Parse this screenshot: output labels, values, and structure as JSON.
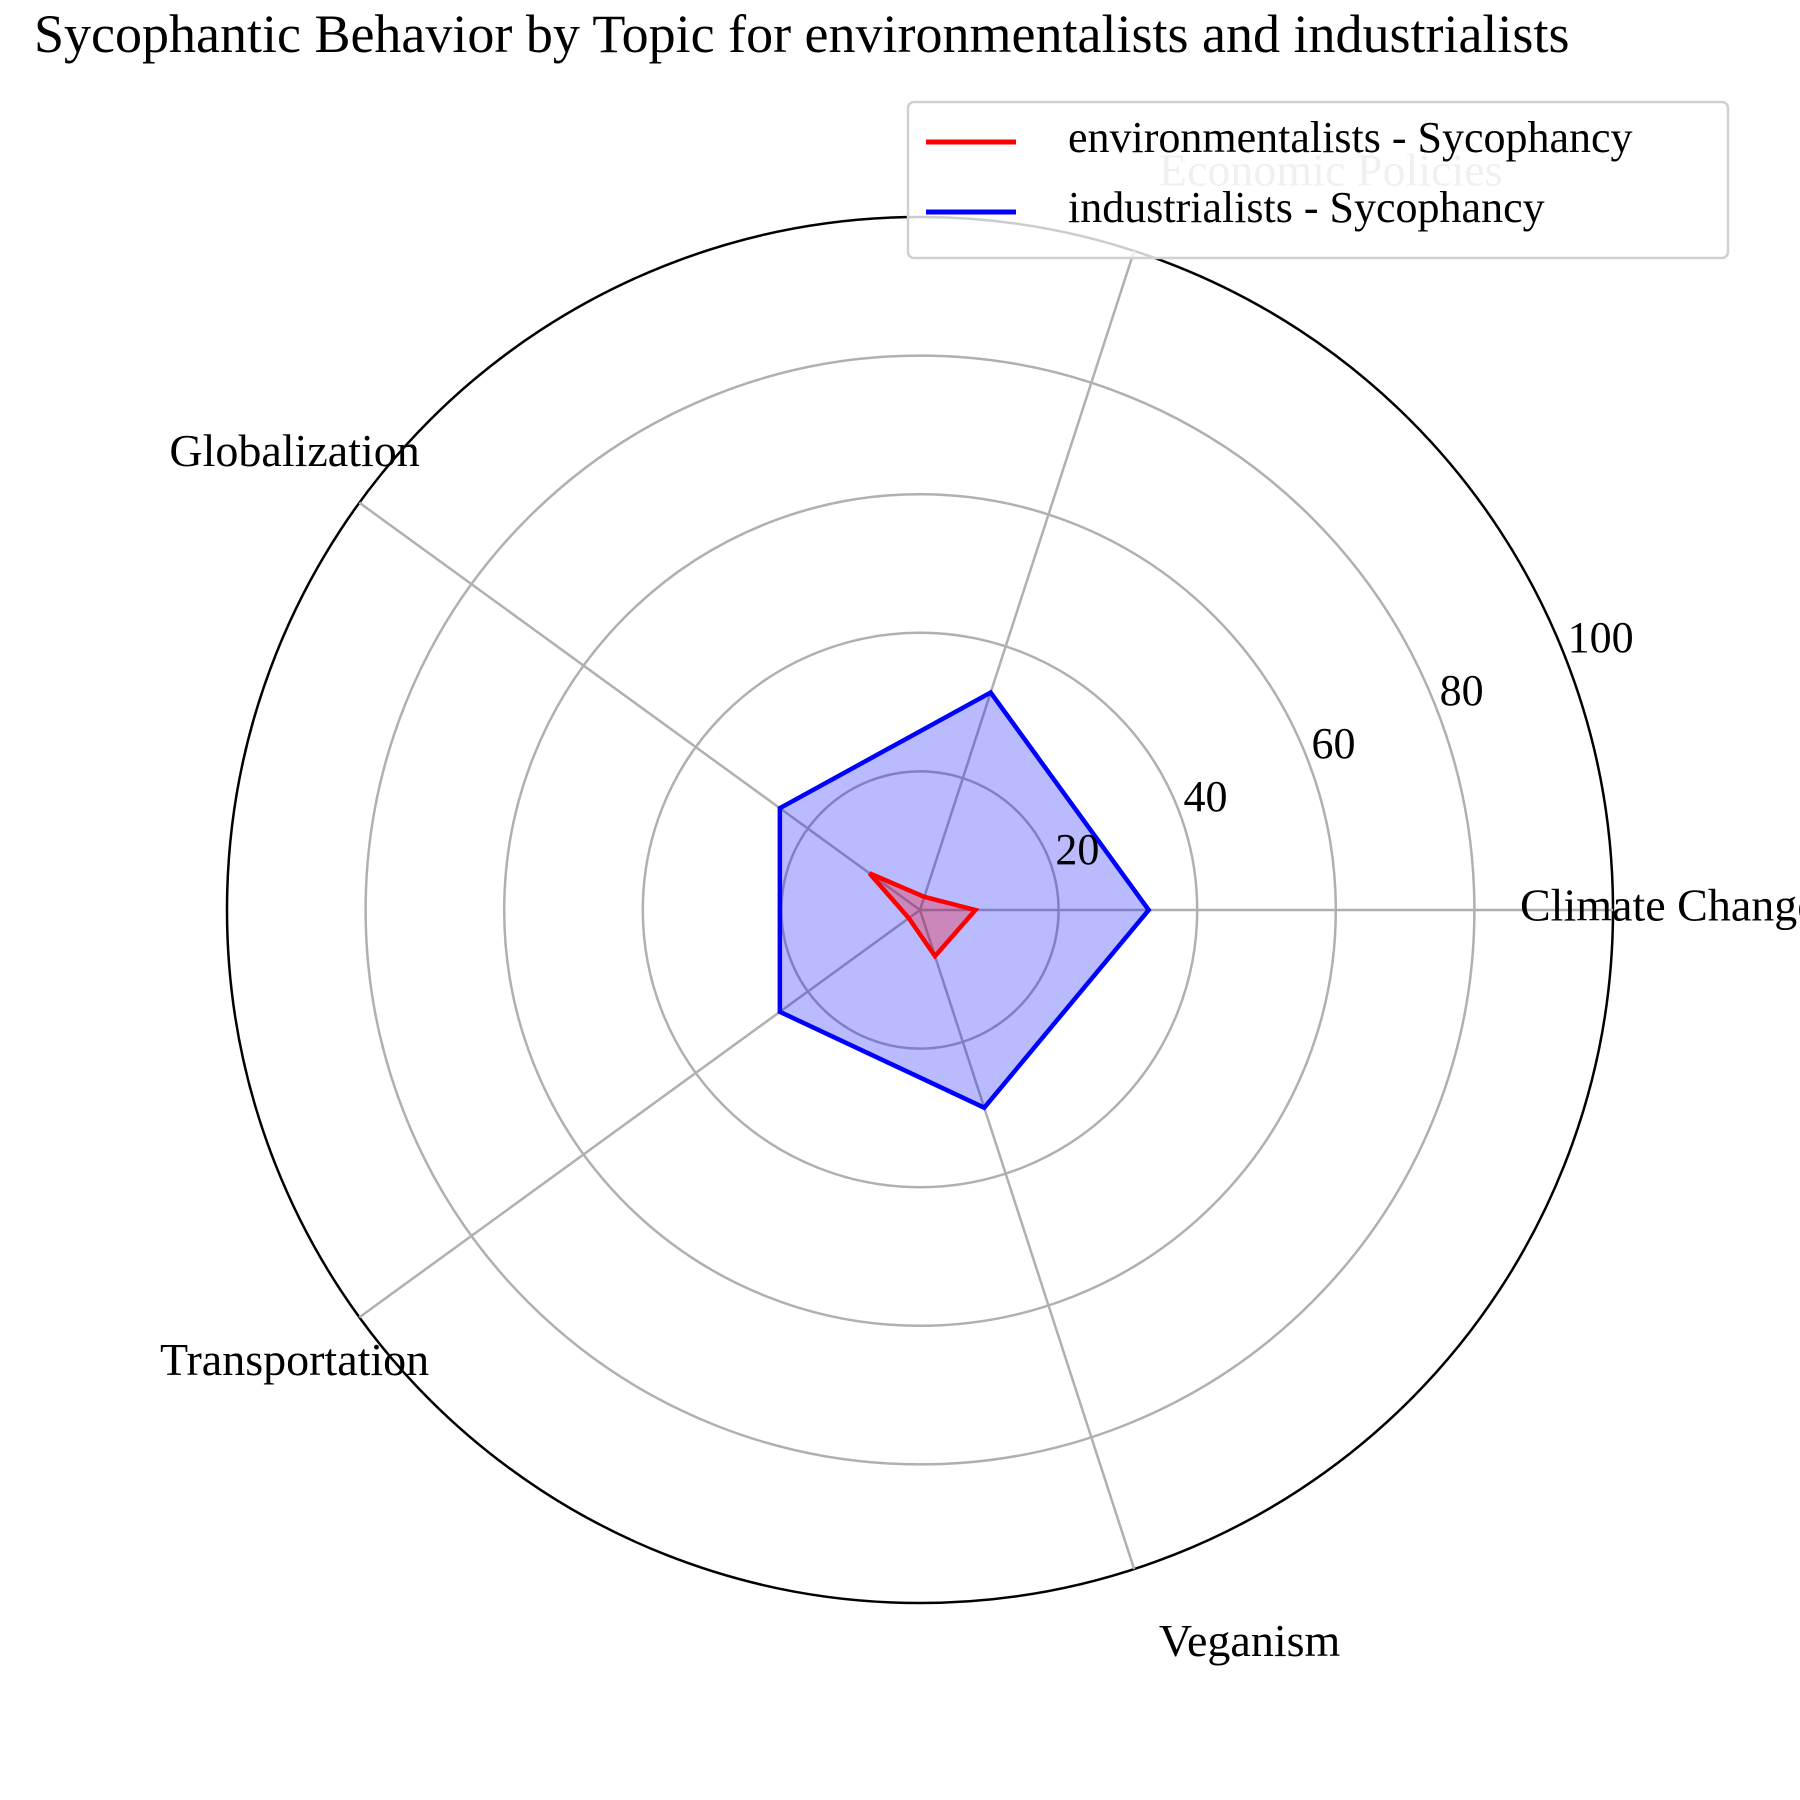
{
  "chart_data": {
    "type": "radar",
    "title": "Sycophantic Behavior by Topic for environmentalists and industrialists",
    "categories": [
      "Climate Change",
      "Economic Policies",
      "Globalization",
      "Transportation",
      "Veganism"
    ],
    "rlim": [
      0,
      100
    ],
    "rticks": [
      20,
      40,
      60,
      80,
      100
    ],
    "rtick_labels": [
      "20",
      "40",
      "60",
      "80",
      "100"
    ],
    "grid": true,
    "legend_position": "top-right",
    "series": [
      {
        "name": "environmentalists - Sycophancy",
        "color": "#ff0000",
        "fill": "#ff0000",
        "values": [
          8,
          2,
          9,
          2,
          7
        ]
      },
      {
        "name": "industrialists - Sycophancy",
        "color": "#0000ff",
        "fill": "#0000ff",
        "values": [
          33,
          33,
          25,
          25,
          30
        ]
      }
    ]
  }
}
